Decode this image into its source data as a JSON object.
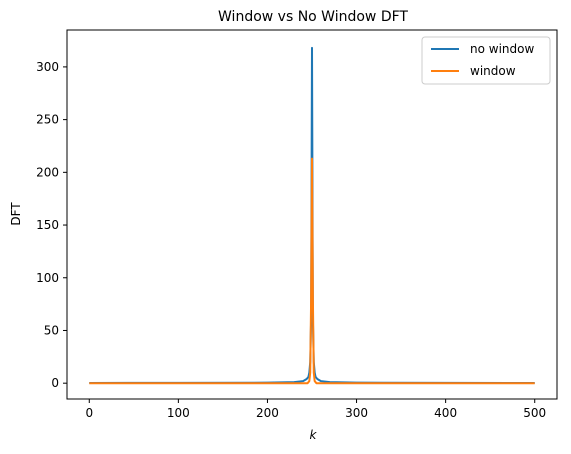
{
  "chart_data": {
    "type": "line",
    "title": "Window vs No Window DFT",
    "xlabel": "k",
    "ylabel": "DFT",
    "xlim": [
      -25,
      525
    ],
    "ylim": [
      -15,
      335
    ],
    "xticks": [
      "0",
      "100",
      "200",
      "300",
      "400",
      "500"
    ],
    "yticks": [
      "0",
      "50",
      "100",
      "150",
      "200",
      "250",
      "300"
    ],
    "grid": false,
    "legend_position": "top-right",
    "series": [
      {
        "name": "no window",
        "color": "#1f77b4",
        "x": [
          0,
          100,
          200,
          230,
          240,
          244,
          246,
          247,
          248,
          249,
          250,
          251,
          252,
          253,
          254,
          256,
          260,
          270,
          300,
          400,
          500
        ],
        "y": [
          0.2,
          0.3,
          0.5,
          1,
          2,
          4,
          6,
          10,
          20,
          60,
          318,
          60,
          20,
          10,
          6,
          4,
          2,
          1,
          0.5,
          0.3,
          0.2
        ]
      },
      {
        "name": "window",
        "color": "#ff7f0e",
        "x": [
          0,
          100,
          200,
          240,
          245,
          247,
          248,
          249,
          250,
          251,
          252,
          253,
          255,
          260,
          300,
          400,
          500
        ],
        "y": [
          0,
          0,
          0,
          0,
          0,
          2,
          10,
          80,
          213,
          80,
          10,
          2,
          0,
          0,
          0,
          0,
          0
        ]
      }
    ]
  }
}
